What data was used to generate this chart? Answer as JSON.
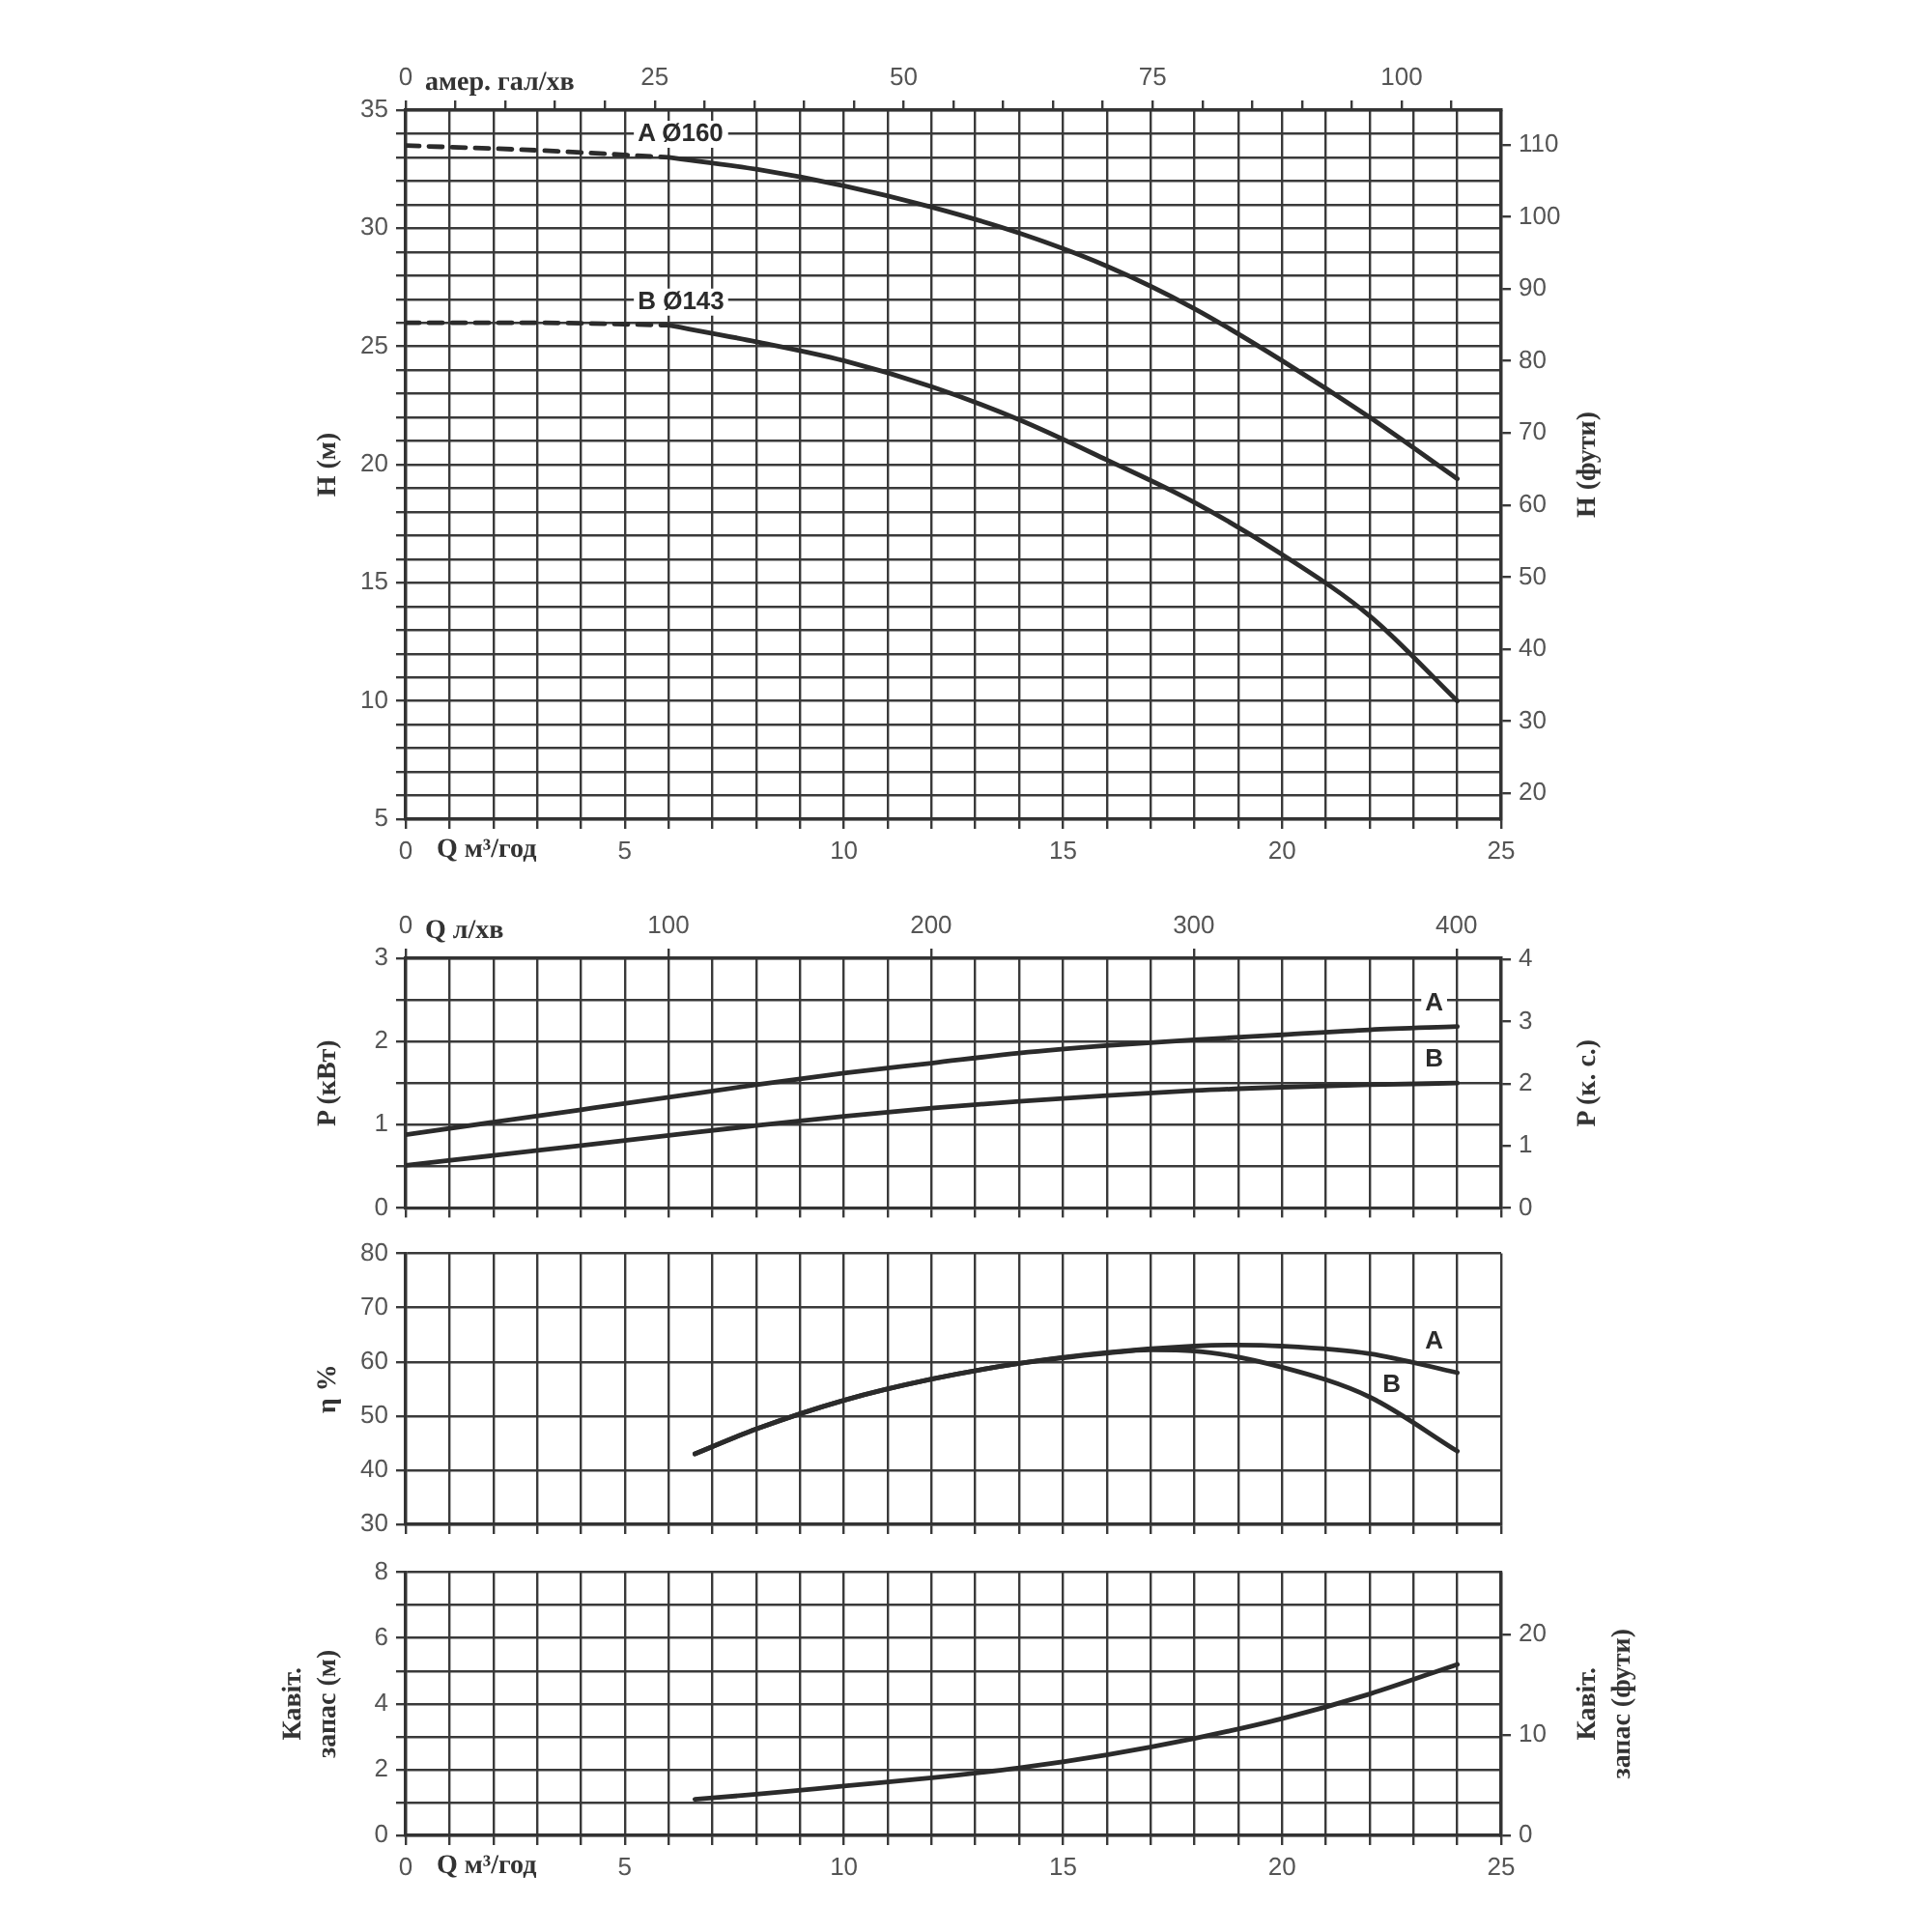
{
  "chart_data": [
    {
      "type": "line",
      "xlabel": "Q м³/год",
      "x2label": "амер. гал/хв",
      "ylabel": "H (м)",
      "y2label": "H (фути)",
      "xlim": [
        0,
        25
      ],
      "xticks": [
        0,
        {
          "value": 1,
          "label": null
        },
        {
          "value": 2,
          "label": null
        },
        {
          "value": 3,
          "label": null
        },
        {
          "value": 4,
          "label": null
        },
        5,
        {
          "value": 6,
          "label": null
        },
        {
          "value": 7,
          "label": null
        },
        {
          "value": 8,
          "label": null
        },
        {
          "value": 9,
          "label": null
        },
        10,
        {
          "value": 11,
          "label": null
        },
        {
          "value": 12,
          "label": null
        },
        {
          "value": 13,
          "label": null
        },
        {
          "value": 14,
          "label": null
        },
        15,
        {
          "value": 16,
          "label": null
        },
        {
          "value": 17,
          "label": null
        },
        {
          "value": 18,
          "label": null
        },
        {
          "value": 19,
          "label": null
        },
        20,
        {
          "value": 21,
          "label": null
        },
        {
          "value": 22,
          "label": null
        },
        {
          "value": 23,
          "label": null
        },
        {
          "value": 24,
          "label": null
        },
        25
      ],
      "x2lim": [
        0,
        110
      ],
      "x2ticks": [
        0,
        {
          "value": 5,
          "label": null
        },
        {
          "value": 10,
          "label": null
        },
        {
          "value": 15,
          "label": null
        },
        {
          "value": 20,
          "label": null
        },
        25,
        {
          "value": 30,
          "label": null
        },
        {
          "value": 35,
          "label": null
        },
        {
          "value": 40,
          "label": null
        },
        {
          "value": 45,
          "label": null
        },
        50,
        {
          "value": 55,
          "label": null
        },
        {
          "value": 60,
          "label": null
        },
        {
          "value": 65,
          "label": null
        },
        {
          "value": 70,
          "label": null
        },
        75,
        {
          "value": 80,
          "label": null
        },
        {
          "value": 85,
          "label": null
        },
        {
          "value": 90,
          "label": null
        },
        {
          "value": 95,
          "label": null
        },
        100,
        {
          "value": 105,
          "label": null
        }
      ],
      "ylim": [
        5,
        35
      ],
      "yticks": [
        5,
        {
          "value": 6,
          "label": null
        },
        {
          "value": 7,
          "label": null
        },
        {
          "value": 8,
          "label": null
        },
        {
          "value": 9,
          "label": null
        },
        10,
        {
          "value": 11,
          "label": null
        },
        {
          "value": 12,
          "label": null
        },
        {
          "value": 13,
          "label": null
        },
        {
          "value": 14,
          "label": null
        },
        15,
        {
          "value": 16,
          "label": null
        },
        {
          "value": 17,
          "label": null
        },
        {
          "value": 18,
          "label": null
        },
        {
          "value": 19,
          "label": null
        },
        20,
        {
          "value": 21,
          "label": null
        },
        {
          "value": 22,
          "label": null
        },
        {
          "value": 23,
          "label": null
        },
        {
          "value": 24,
          "label": null
        },
        25,
        {
          "value": 26,
          "label": null
        },
        {
          "value": 27,
          "label": null
        },
        {
          "value": 28,
          "label": null
        },
        {
          "value": 29,
          "label": null
        },
        30,
        {
          "value": 31,
          "label": null
        },
        {
          "value": 32,
          "label": null
        },
        {
          "value": 33,
          "label": null
        },
        {
          "value": 34,
          "label": null
        },
        35
      ],
      "y2lim": [
        16.4,
        114.8
      ],
      "y2ticks": [
        20,
        30,
        40,
        50,
        60,
        70,
        80,
        90,
        100,
        110
      ],
      "grid": true,
      "marker": "none",
      "series": [
        {
          "name": "A Ø160",
          "color": "#2b2b2b",
          "x": [
            6,
            8,
            10,
            12,
            14,
            16,
            18,
            20,
            22,
            24
          ],
          "values": [
            33.0,
            32.5,
            31.8,
            30.9,
            29.8,
            28.4,
            26.6,
            24.4,
            22.0,
            19.4
          ]
        },
        {
          "color": "#2b2b2b",
          "line_style": "dashed",
          "x": [
            0,
            3,
            6
          ],
          "values": [
            33.5,
            33.3,
            33.0
          ]
        },
        {
          "name": "B Ø143",
          "color": "#2b2b2b",
          "x": [
            6,
            8,
            10,
            12,
            14,
            16,
            18,
            20,
            22,
            24
          ],
          "values": [
            25.9,
            25.2,
            24.4,
            23.3,
            21.9,
            20.2,
            18.4,
            16.2,
            13.6,
            10.0
          ]
        },
        {
          "color": "#2b2b2b",
          "line_style": "dashed",
          "x": [
            0,
            3,
            6
          ],
          "values": [
            26.0,
            26.0,
            25.9
          ]
        }
      ]
    },
    {
      "type": "line",
      "x2label": "Q л/хв",
      "ylabel": "P (кВт)",
      "y2label": "P (к. с.)",
      "tick_labels": "y",
      "xlim": [
        0,
        25
      ],
      "xticks": [
        {
          "value": 0,
          "label": null
        },
        {
          "value": 1,
          "label": null
        },
        {
          "value": 2,
          "label": null
        },
        {
          "value": 3,
          "label": null
        },
        {
          "value": 4,
          "label": null
        },
        {
          "value": 5,
          "label": null
        },
        {
          "value": 6,
          "label": null
        },
        {
          "value": 7,
          "label": null
        },
        {
          "value": 8,
          "label": null
        },
        {
          "value": 9,
          "label": null
        },
        {
          "value": 10,
          "label": null
        },
        {
          "value": 11,
          "label": null
        },
        {
          "value": 12,
          "label": null
        },
        {
          "value": 13,
          "label": null
        },
        {
          "value": 14,
          "label": null
        },
        {
          "value": 15,
          "label": null
        },
        {
          "value": 16,
          "label": null
        },
        {
          "value": 17,
          "label": null
        },
        {
          "value": 18,
          "label": null
        },
        {
          "value": 19,
          "label": null
        },
        {
          "value": 20,
          "label": null
        },
        {
          "value": 21,
          "label": null
        },
        {
          "value": 22,
          "label": null
        },
        {
          "value": 23,
          "label": null
        },
        {
          "value": 24,
          "label": null
        },
        {
          "value": 25,
          "label": null
        }
      ],
      "x2lim": [
        0,
        417
      ],
      "x2ticks": [
        0,
        100,
        200,
        300,
        400
      ],
      "ylim": [
        0,
        3
      ],
      "yticks": [
        0,
        {
          "value": 0.5,
          "label": null
        },
        1,
        {
          "value": 1.5,
          "label": null
        },
        2,
        {
          "value": 2.5,
          "label": null
        },
        3
      ],
      "y2lim": [
        0,
        4.02
      ],
      "y2ticks": [
        0,
        1,
        2,
        3,
        4
      ],
      "grid": true,
      "marker": "none",
      "series": [
        {
          "name": "A",
          "color": "#2b2b2b",
          "x": [
            0,
            2,
            4,
            6,
            8,
            10,
            12,
            14,
            16,
            18,
            20,
            22,
            24
          ],
          "values": [
            0.88,
            1.03,
            1.18,
            1.33,
            1.48,
            1.62,
            1.74,
            1.86,
            1.95,
            2.02,
            2.08,
            2.14,
            2.18
          ]
        },
        {
          "name": "B",
          "color": "#2b2b2b",
          "x": [
            0,
            2,
            4,
            6,
            8,
            10,
            12,
            14,
            16,
            18,
            20,
            22,
            24
          ],
          "values": [
            0.51,
            0.63,
            0.75,
            0.87,
            0.99,
            1.1,
            1.2,
            1.28,
            1.35,
            1.41,
            1.45,
            1.48,
            1.5
          ]
        }
      ]
    },
    {
      "type": "line",
      "ylabel": "η %",
      "tick_labels": "y",
      "xlim": [
        0,
        25
      ],
      "xticks": [
        {
          "value": 0,
          "label": null
        },
        {
          "value": 1,
          "label": null
        },
        {
          "value": 2,
          "label": null
        },
        {
          "value": 3,
          "label": null
        },
        {
          "value": 4,
          "label": null
        },
        {
          "value": 5,
          "label": null
        },
        {
          "value": 6,
          "label": null
        },
        {
          "value": 7,
          "label": null
        },
        {
          "value": 8,
          "label": null
        },
        {
          "value": 9,
          "label": null
        },
        {
          "value": 10,
          "label": null
        },
        {
          "value": 11,
          "label": null
        },
        {
          "value": 12,
          "label": null
        },
        {
          "value": 13,
          "label": null
        },
        {
          "value": 14,
          "label": null
        },
        {
          "value": 15,
          "label": null
        },
        {
          "value": 16,
          "label": null
        },
        {
          "value": 17,
          "label": null
        },
        {
          "value": 18,
          "label": null
        },
        {
          "value": 19,
          "label": null
        },
        {
          "value": 20,
          "label": null
        },
        {
          "value": 21,
          "label": null
        },
        {
          "value": 22,
          "label": null
        },
        {
          "value": 23,
          "label": null
        },
        {
          "value": 24,
          "label": null
        },
        {
          "value": 25,
          "label": null
        }
      ],
      "ylim": [
        30,
        80
      ],
      "yticks": [
        30,
        40,
        50,
        60,
        70,
        80
      ],
      "grid": true,
      "marker": "none",
      "series": [
        {
          "name": "A",
          "color": "#2b2b2b",
          "x": [
            6.6,
            8,
            10,
            12,
            14,
            16,
            18,
            19,
            20,
            22,
            24
          ],
          "values": [
            43.0,
            47.6,
            52.9,
            56.8,
            59.7,
            61.7,
            62.9,
            63.1,
            62.9,
            61.5,
            58.0
          ]
        },
        {
          "name": "B",
          "color": "#2b2b2b",
          "x": [
            6.6,
            8,
            10,
            12,
            14,
            16,
            17,
            18,
            20,
            22,
            24
          ],
          "values": [
            43.0,
            47.6,
            52.9,
            56.8,
            59.7,
            61.6,
            62.2,
            62.0,
            59.0,
            53.5,
            43.5
          ]
        }
      ]
    },
    {
      "type": "line",
      "xlabel": "Q м³/год",
      "ylabel": "Кавіт.\nзапас (м)",
      "y2label": "Кавіт.\nзапас (фути)",
      "xlim": [
        0,
        25
      ],
      "xticks": [
        0,
        {
          "value": 1,
          "label": null
        },
        {
          "value": 2,
          "label": null
        },
        {
          "value": 3,
          "label": null
        },
        {
          "value": 4,
          "label": null
        },
        5,
        {
          "value": 6,
          "label": null
        },
        {
          "value": 7,
          "label": null
        },
        {
          "value": 8,
          "label": null
        },
        {
          "value": 9,
          "label": null
        },
        10,
        {
          "value": 11,
          "label": null
        },
        {
          "value": 12,
          "label": null
        },
        {
          "value": 13,
          "label": null
        },
        {
          "value": 14,
          "label": null
        },
        15,
        {
          "value": 16,
          "label": null
        },
        {
          "value": 17,
          "label": null
        },
        {
          "value": 18,
          "label": null
        },
        {
          "value": 19,
          "label": null
        },
        20,
        {
          "value": 21,
          "label": null
        },
        {
          "value": 22,
          "label": null
        },
        {
          "value": 23,
          "label": null
        },
        {
          "value": 24,
          "label": null
        },
        25
      ],
      "ylim": [
        0,
        8
      ],
      "yticks": [
        0,
        {
          "value": 1,
          "label": null
        },
        2,
        {
          "value": 3,
          "label": null
        },
        4,
        {
          "value": 5,
          "label": null
        },
        6,
        {
          "value": 7,
          "label": null
        },
        8
      ],
      "y2lim": [
        0,
        26.2
      ],
      "y2ticks": [
        0,
        10,
        20
      ],
      "grid": true,
      "marker": "none",
      "series": [
        {
          "color": "#2b2b2b",
          "x": [
            6.6,
            8,
            10,
            12,
            14,
            16,
            18,
            20,
            22,
            24
          ],
          "values": [
            1.1,
            1.25,
            1.5,
            1.75,
            2.05,
            2.45,
            2.95,
            3.55,
            4.3,
            5.2
          ]
        }
      ]
    }
  ]
}
